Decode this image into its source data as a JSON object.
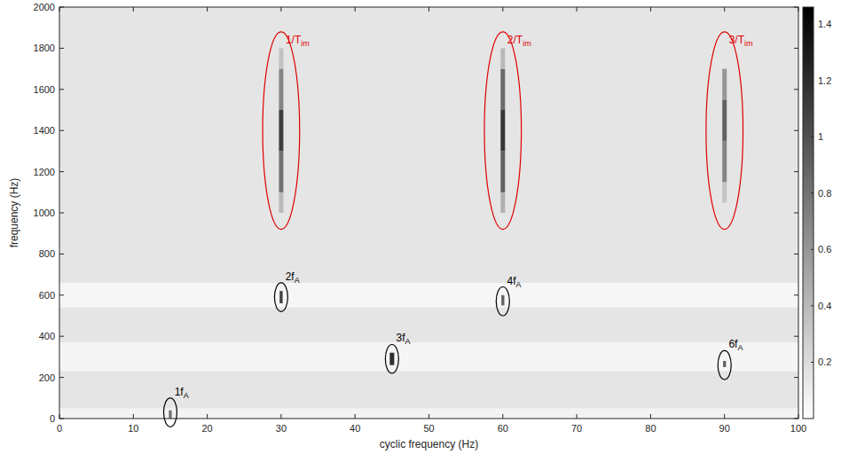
{
  "chart_data": {
    "type": "heatmap",
    "xlabel": "cyclic frequency (Hz)",
    "ylabel": "frequency (Hz)",
    "xlim": [
      0,
      100
    ],
    "ylim": [
      0,
      2000
    ],
    "xticks": [
      0,
      10,
      20,
      30,
      40,
      50,
      60,
      70,
      80,
      90,
      100
    ],
    "yticks": [
      0,
      200,
      400,
      600,
      800,
      1000,
      1200,
      1400,
      1600,
      1800,
      2000
    ],
    "colorbar": {
      "range": [
        0,
        1.46
      ],
      "ticks": [
        0.2,
        0.4,
        0.6,
        0.8,
        1,
        1.2,
        1.4
      ]
    },
    "cells": [
      {
        "x": [
          0,
          100
        ],
        "y": [
          0,
          2000
        ],
        "value": 0.15
      },
      {
        "x": [
          0,
          100
        ],
        "y": [
          540,
          660
        ],
        "value": 0.05
      },
      {
        "x": [
          0,
          100
        ],
        "y": [
          230,
          370
        ],
        "value": 0.06
      },
      {
        "x": [
          0,
          100
        ],
        "y": [
          0,
          50
        ],
        "value": 0.07
      },
      {
        "x": [
          29.7,
          30.3
        ],
        "y": [
          1000,
          1100
        ],
        "value": 0.4
      },
      {
        "x": [
          29.7,
          30.3
        ],
        "y": [
          1100,
          1300
        ],
        "value": 0.8
      },
      {
        "x": [
          29.7,
          30.3
        ],
        "y": [
          1300,
          1500
        ],
        "value": 1.1
      },
      {
        "x": [
          29.7,
          30.3
        ],
        "y": [
          1500,
          1700
        ],
        "value": 0.7
      },
      {
        "x": [
          29.7,
          30.3
        ],
        "y": [
          1700,
          1800
        ],
        "value": 0.35
      },
      {
        "x": [
          59.7,
          60.3
        ],
        "y": [
          1000,
          1100
        ],
        "value": 0.45
      },
      {
        "x": [
          59.7,
          60.3
        ],
        "y": [
          1100,
          1300
        ],
        "value": 0.9
      },
      {
        "x": [
          59.7,
          60.3
        ],
        "y": [
          1300,
          1500
        ],
        "value": 1.15
      },
      {
        "x": [
          59.7,
          60.3
        ],
        "y": [
          1500,
          1700
        ],
        "value": 0.85
      },
      {
        "x": [
          59.7,
          60.3
        ],
        "y": [
          1700,
          1800
        ],
        "value": 0.4
      },
      {
        "x": [
          89.7,
          90.3
        ],
        "y": [
          1050,
          1150
        ],
        "value": 0.35
      },
      {
        "x": [
          89.7,
          90.3
        ],
        "y": [
          1150,
          1350
        ],
        "value": 0.7
      },
      {
        "x": [
          89.7,
          90.3
        ],
        "y": [
          1350,
          1550
        ],
        "value": 0.9
      },
      {
        "x": [
          89.7,
          90.3
        ],
        "y": [
          1550,
          1700
        ],
        "value": 0.6
      },
      {
        "x": [
          14.8,
          15.2
        ],
        "y": [
          0,
          40
        ],
        "value": 0.8
      },
      {
        "x": [
          29.8,
          30.2
        ],
        "y": [
          560,
          620
        ],
        "value": 1.1
      },
      {
        "x": [
          44.7,
          45.3
        ],
        "y": [
          260,
          320
        ],
        "value": 1.2
      },
      {
        "x": [
          59.8,
          60.2
        ],
        "y": [
          550,
          600
        ],
        "value": 0.9
      },
      {
        "x": [
          89.8,
          90.2
        ],
        "y": [
          250,
          280
        ],
        "value": 0.9
      }
    ],
    "annotations": [
      {
        "label": "1/T",
        "subscript": "im",
        "x": 30,
        "y": 1400,
        "rx": 2.5,
        "ry": 480,
        "color": "#e00000"
      },
      {
        "label": "2/T",
        "subscript": "im",
        "x": 60,
        "y": 1400,
        "rx": 2.5,
        "ry": 480,
        "color": "#e00000"
      },
      {
        "label": "3/T",
        "subscript": "im",
        "x": 90,
        "y": 1400,
        "rx": 2.5,
        "ry": 480,
        "color": "#e00000"
      },
      {
        "label": "1f",
        "subscript": "A",
        "x": 15,
        "y": 30,
        "rx": 0.9,
        "ry": 70,
        "color": "#000000"
      },
      {
        "label": "2f",
        "subscript": "A",
        "x": 30,
        "y": 590,
        "rx": 0.9,
        "ry": 70,
        "color": "#000000"
      },
      {
        "label": "3f",
        "subscript": "A",
        "x": 45,
        "y": 290,
        "rx": 0.9,
        "ry": 70,
        "color": "#000000"
      },
      {
        "label": "4f",
        "subscript": "A",
        "x": 60,
        "y": 570,
        "rx": 0.9,
        "ry": 70,
        "color": "#000000"
      },
      {
        "label": "6f",
        "subscript": "A",
        "x": 90,
        "y": 260,
        "rx": 0.9,
        "ry": 70,
        "color": "#000000"
      }
    ]
  }
}
